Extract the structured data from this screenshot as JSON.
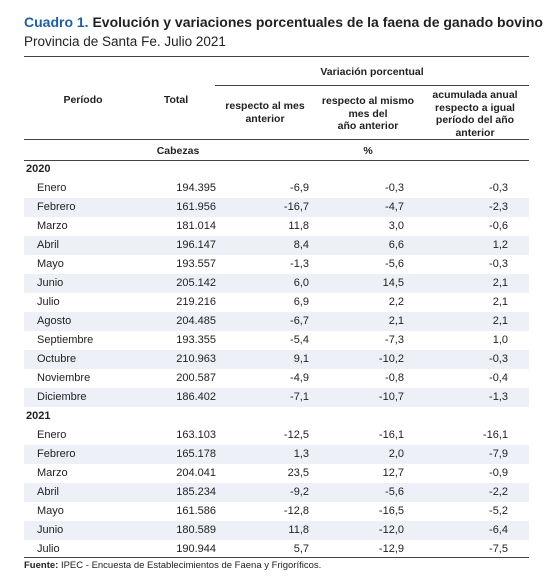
{
  "title": {
    "number": "Cuadro 1.",
    "text": "Evolución y variaciones porcentuales de la faena de ganado bovino"
  },
  "subtitle": "Provincia de Santa Fe. Julio 2021",
  "headers": {
    "periodo": "Período",
    "total": "Total",
    "variacion": "Variación porcentual",
    "col_mes": [
      "respecto al mes",
      "anterior"
    ],
    "col_anio": [
      "respecto al mismo",
      "mes del",
      "año anterior"
    ],
    "col_acum": [
      "acumulada anual",
      "respecto a igual",
      "período del año",
      "anterior"
    ],
    "unit_total": "Cabezas",
    "unit_pct": "%"
  },
  "years": [
    {
      "year": "2020",
      "rows": [
        [
          "Enero",
          "194.395",
          "-6,9",
          "-0,3",
          "-0,3"
        ],
        [
          "Febrero",
          "161.956",
          "-16,7",
          "-4,7",
          "-2,3"
        ],
        [
          "Marzo",
          "181.014",
          "11,8",
          "3,0",
          "-0,6"
        ],
        [
          "Abril",
          "196.147",
          "8,4",
          "6,6",
          "1,2"
        ],
        [
          "Mayo",
          "193.557",
          "-1,3",
          "-5,6",
          "-0,3"
        ],
        [
          "Junio",
          "205.142",
          "6,0",
          "14,5",
          "2,1"
        ],
        [
          "Julio",
          "219.216",
          "6,9",
          "2,2",
          "2,1"
        ],
        [
          "Agosto",
          "204.485",
          "-6,7",
          "2,1",
          "2,1"
        ],
        [
          "Septiembre",
          "193.355",
          "-5,4",
          "-7,3",
          "1,0"
        ],
        [
          "Octubre",
          "210.963",
          "9,1",
          "-10,2",
          "-0,3"
        ],
        [
          "Noviembre",
          "200.587",
          "-4,9",
          "-0,8",
          "-0,4"
        ],
        [
          "Diciembre",
          "186.402",
          "-7,1",
          "-10,7",
          "-1,3"
        ]
      ]
    },
    {
      "year": "2021",
      "rows": [
        [
          "Enero",
          "163.103",
          "-12,5",
          "-16,1",
          "-16,1"
        ],
        [
          "Febrero",
          "165.178",
          "1,3",
          "2,0",
          "-7,9"
        ],
        [
          "Marzo",
          "204.041",
          "23,5",
          "12,7",
          "-0,9"
        ],
        [
          "Abril",
          "185.234",
          "-9,2",
          "-5,6",
          "-2,2"
        ],
        [
          "Mayo",
          "161.586",
          "-12,8",
          "-16,5",
          "-5,2"
        ],
        [
          "Junio",
          "180.589",
          "11,8",
          "-12,0",
          "-6,4"
        ],
        [
          "Julio",
          "190.944",
          "5,7",
          "-12,9",
          "-7,5"
        ]
      ]
    }
  ],
  "source": {
    "label": "Fuente:",
    "text": " IPEC - Encuesta de Establecimientos de Faena y Frigoríficos."
  }
}
